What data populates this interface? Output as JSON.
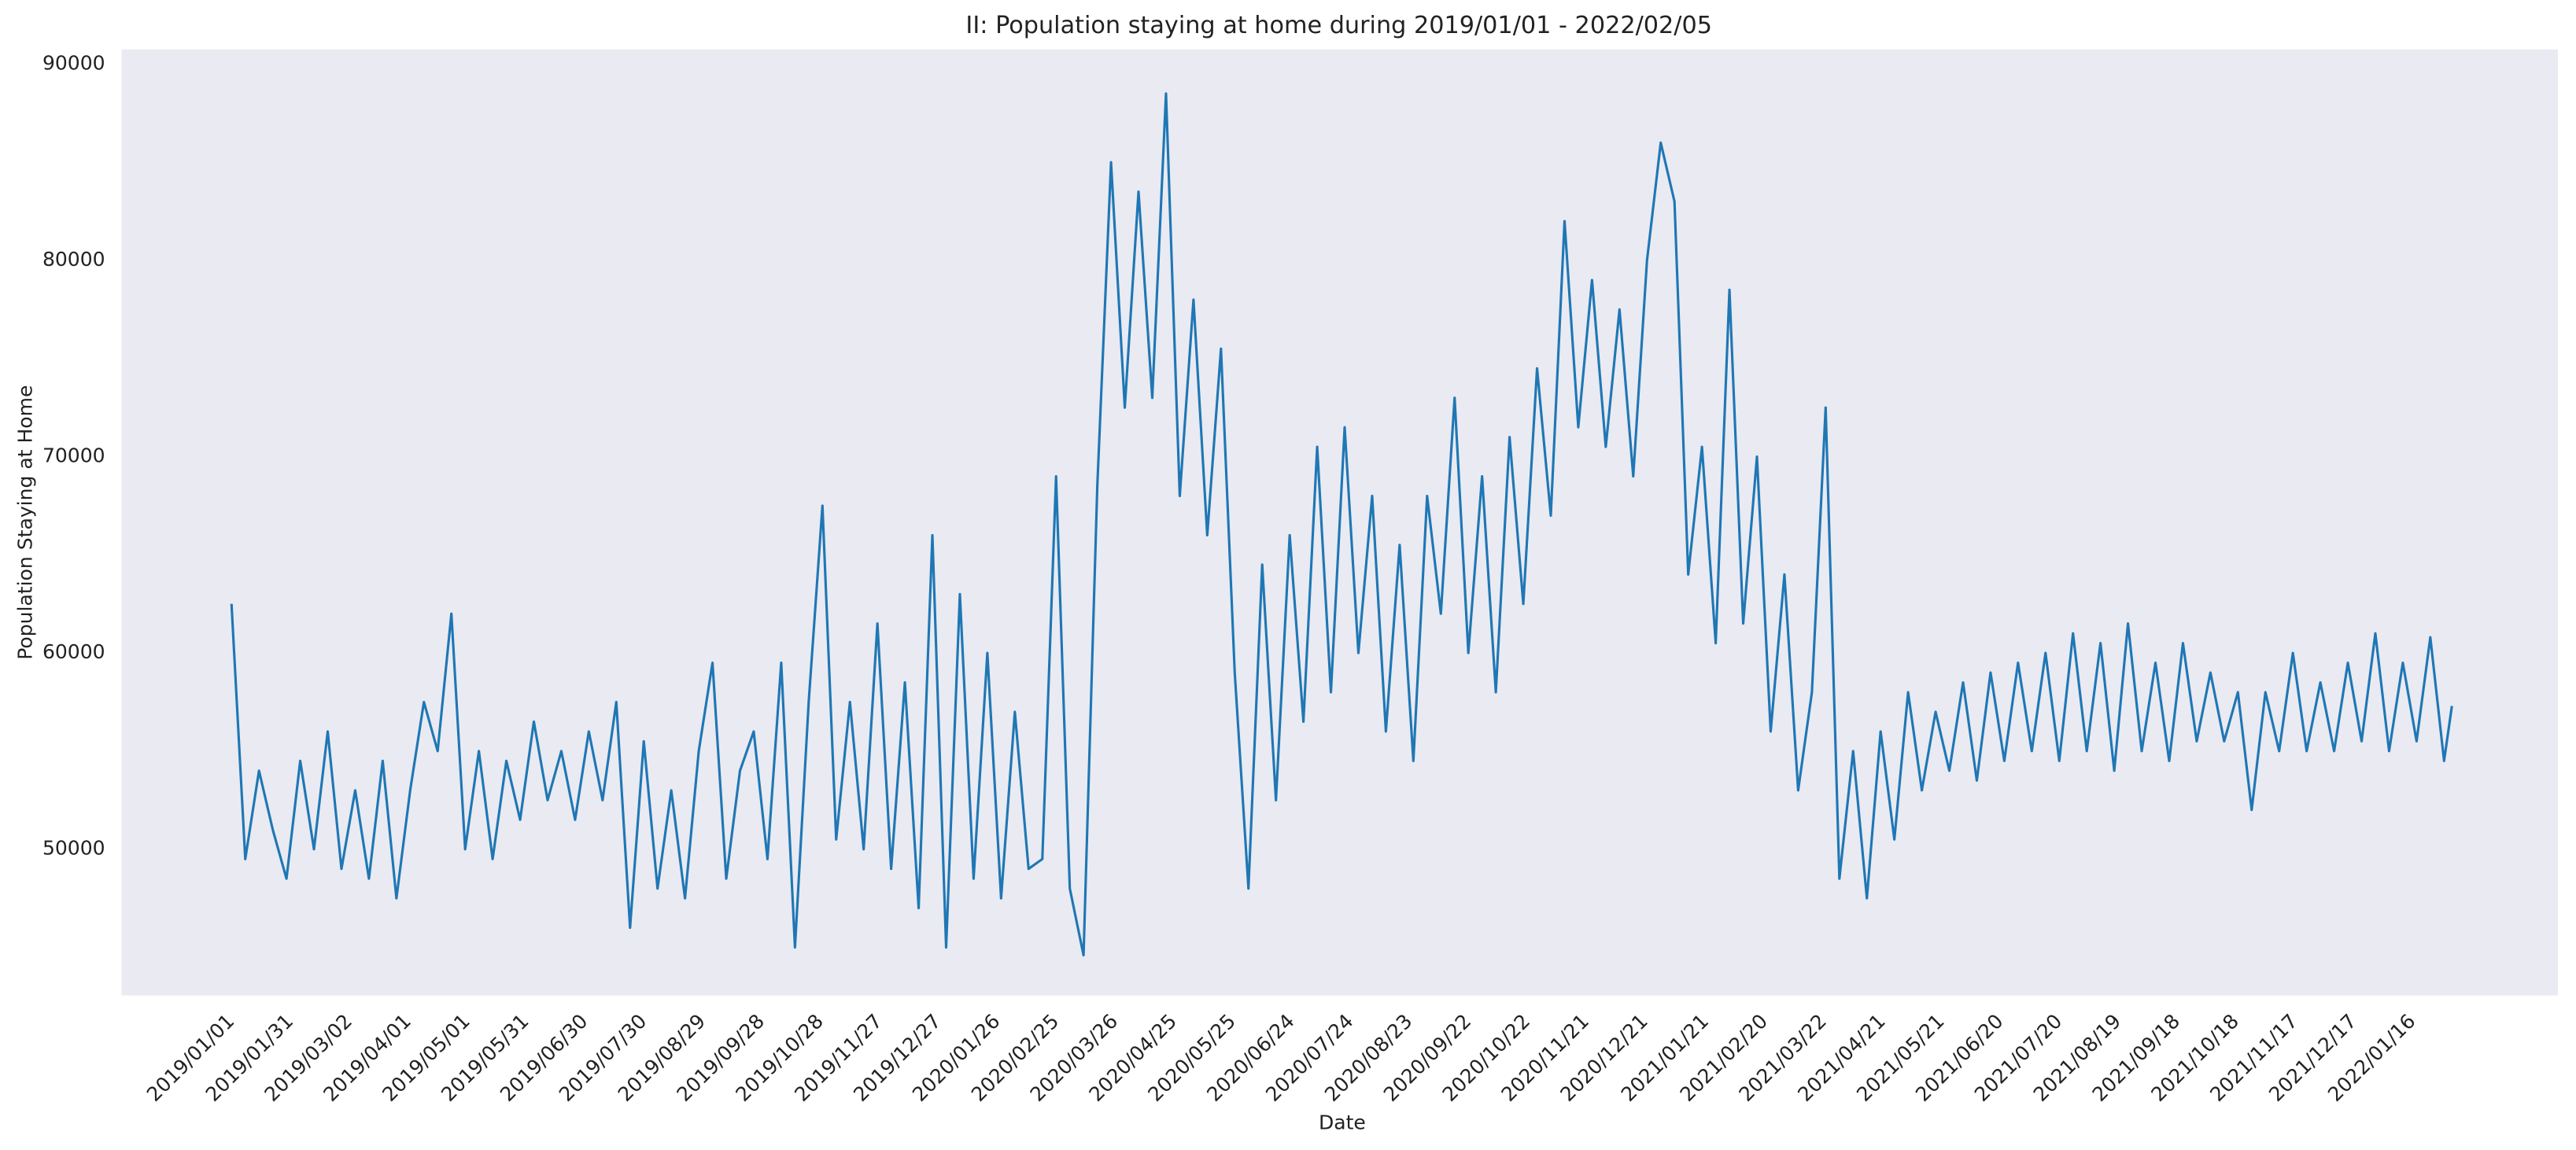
{
  "chart_data": {
    "type": "line",
    "title": "II: Population staying at home during 2019/01/01 - 2022/02/05",
    "xlabel": "Date",
    "ylabel": "Population Staying at Home",
    "background": "#eaeaf2",
    "grid": false,
    "xlim": [
      "2018/11/06",
      "2022/03/31"
    ],
    "xticks": [
      "2019/01/01",
      "2019/01/31",
      "2019/03/02",
      "2019/04/01",
      "2019/05/01",
      "2019/05/31",
      "2019/06/30",
      "2019/07/30",
      "2019/08/29",
      "2019/09/28",
      "2019/10/28",
      "2019/11/27",
      "2019/12/27",
      "2020/01/26",
      "2020/02/25",
      "2020/03/26",
      "2020/04/25",
      "2020/05/25",
      "2020/06/24",
      "2020/07/24",
      "2020/08/23",
      "2020/09/22",
      "2020/10/22",
      "2020/11/21",
      "2020/12/21",
      "2021/01/21",
      "2021/02/20",
      "2021/03/22",
      "2021/04/21",
      "2021/05/21",
      "2021/06/20",
      "2021/07/20",
      "2021/08/19",
      "2021/09/18",
      "2021/10/18",
      "2021/11/17",
      "2021/12/17",
      "2022/01/16"
    ],
    "ylim": [
      42550,
      90750
    ],
    "yticks": [
      50000,
      60000,
      70000,
      80000,
      90000
    ],
    "x": [
      "2019/01/01",
      "2019/01/08",
      "2019/01/15",
      "2019/01/22",
      "2019/01/29",
      "2019/02/05",
      "2019/02/12",
      "2019/02/19",
      "2019/02/26",
      "2019/03/05",
      "2019/03/12",
      "2019/03/19",
      "2019/03/26",
      "2019/04/02",
      "2019/04/09",
      "2019/04/16",
      "2019/04/23",
      "2019/04/30",
      "2019/05/07",
      "2019/05/14",
      "2019/05/21",
      "2019/05/28",
      "2019/06/04",
      "2019/06/11",
      "2019/06/18",
      "2019/06/25",
      "2019/07/02",
      "2019/07/09",
      "2019/07/16",
      "2019/07/23",
      "2019/07/30",
      "2019/08/06",
      "2019/08/13",
      "2019/08/20",
      "2019/08/27",
      "2019/09/03",
      "2019/09/10",
      "2019/09/17",
      "2019/09/24",
      "2019/10/01",
      "2019/10/08",
      "2019/10/15",
      "2019/10/22",
      "2019/10/29",
      "2019/11/05",
      "2019/11/12",
      "2019/11/19",
      "2019/11/26",
      "2019/12/03",
      "2019/12/10",
      "2019/12/17",
      "2019/12/24",
      "2019/12/31",
      "2020/01/07",
      "2020/01/14",
      "2020/01/21",
      "2020/01/28",
      "2020/02/04",
      "2020/02/11",
      "2020/02/18",
      "2020/02/25",
      "2020/03/03",
      "2020/03/10",
      "2020/03/17",
      "2020/03/24",
      "2020/03/31",
      "2020/04/07",
      "2020/04/14",
      "2020/04/21",
      "2020/04/28",
      "2020/05/05",
      "2020/05/12",
      "2020/05/19",
      "2020/05/26",
      "2020/06/02",
      "2020/06/09",
      "2020/06/16",
      "2020/06/23",
      "2020/06/30",
      "2020/07/07",
      "2020/07/14",
      "2020/07/21",
      "2020/07/28",
      "2020/08/04",
      "2020/08/11",
      "2020/08/18",
      "2020/08/25",
      "2020/09/01",
      "2020/09/08",
      "2020/09/15",
      "2020/09/22",
      "2020/09/29",
      "2020/10/06",
      "2020/10/13",
      "2020/10/20",
      "2020/10/27",
      "2020/11/03",
      "2020/11/10",
      "2020/11/17",
      "2020/11/24",
      "2020/12/01",
      "2020/12/08",
      "2020/12/15",
      "2020/12/22",
      "2020/12/29",
      "2021/01/05",
      "2021/01/12",
      "2021/01/19",
      "2021/01/26",
      "2021/02/02",
      "2021/02/09",
      "2021/02/16",
      "2021/02/23",
      "2021/03/02",
      "2021/03/09",
      "2021/03/16",
      "2021/03/23",
      "2021/03/30",
      "2021/04/06",
      "2021/04/13",
      "2021/04/20",
      "2021/04/27",
      "2021/05/04",
      "2021/05/11",
      "2021/05/18",
      "2021/05/25",
      "2021/06/01",
      "2021/06/08",
      "2021/06/15",
      "2021/06/22",
      "2021/06/29",
      "2021/07/06",
      "2021/07/13",
      "2021/07/20",
      "2021/07/27",
      "2021/08/03",
      "2021/08/10",
      "2021/08/17",
      "2021/08/24",
      "2021/08/31",
      "2021/09/07",
      "2021/09/14",
      "2021/09/21",
      "2021/09/28",
      "2021/10/05",
      "2021/10/12",
      "2021/10/19",
      "2021/10/26",
      "2021/11/02",
      "2021/11/09",
      "2021/11/16",
      "2021/11/23",
      "2021/11/30",
      "2021/12/07",
      "2021/12/14",
      "2021/12/21",
      "2021/12/28",
      "2022/01/04",
      "2022/01/11",
      "2022/01/18",
      "2022/01/25",
      "2022/02/01",
      "2022/02/05"
    ],
    "series": [
      {
        "color": "#1f77b4",
        "values": [
          62500,
          49500,
          54000,
          51000,
          48500,
          54500,
          50000,
          56000,
          49000,
          53000,
          48500,
          54500,
          47500,
          53000,
          57500,
          55000,
          62000,
          50000,
          55000,
          49500,
          54500,
          51500,
          56500,
          52500,
          55000,
          51500,
          56000,
          52500,
          57500,
          46000,
          55500,
          48000,
          53000,
          47500,
          55000,
          59500,
          48500,
          54000,
          56000,
          49500,
          59500,
          45000,
          57500,
          67500,
          50500,
          57500,
          50000,
          61500,
          49000,
          58500,
          47000,
          66000,
          45000,
          63000,
          48500,
          60000,
          47500,
          57000,
          49000,
          49500,
          69000,
          48000,
          44600,
          68500,
          85000,
          72500,
          83500,
          73000,
          88500,
          68000,
          78000,
          66000,
          75500,
          59000,
          48000,
          64500,
          52500,
          66000,
          56500,
          70500,
          58000,
          71500,
          60000,
          68000,
          56000,
          65500,
          54500,
          68000,
          62000,
          73000,
          60000,
          69000,
          58000,
          71000,
          62500,
          74500,
          67000,
          82000,
          71500,
          79000,
          70500,
          77500,
          69000,
          80000,
          86000,
          83000,
          64000,
          70500,
          60500,
          78500,
          61500,
          70000,
          56000,
          64000,
          53000,
          58000,
          72500,
          48500,
          55000,
          47500,
          56000,
          50500,
          58000,
          53000,
          57000,
          54000,
          58500,
          53500,
          59000,
          54500,
          59500,
          55000,
          60000,
          54500,
          61000,
          55000,
          60500,
          54000,
          61500,
          55000,
          59500,
          54500,
          60500,
          55500,
          59000,
          55500,
          58000,
          52000,
          58000,
          55000,
          60000,
          55000,
          58500,
          55000,
          59500,
          55500,
          61000,
          55000,
          59500,
          55500,
          60800,
          54500,
          57300
        ]
      }
    ]
  }
}
